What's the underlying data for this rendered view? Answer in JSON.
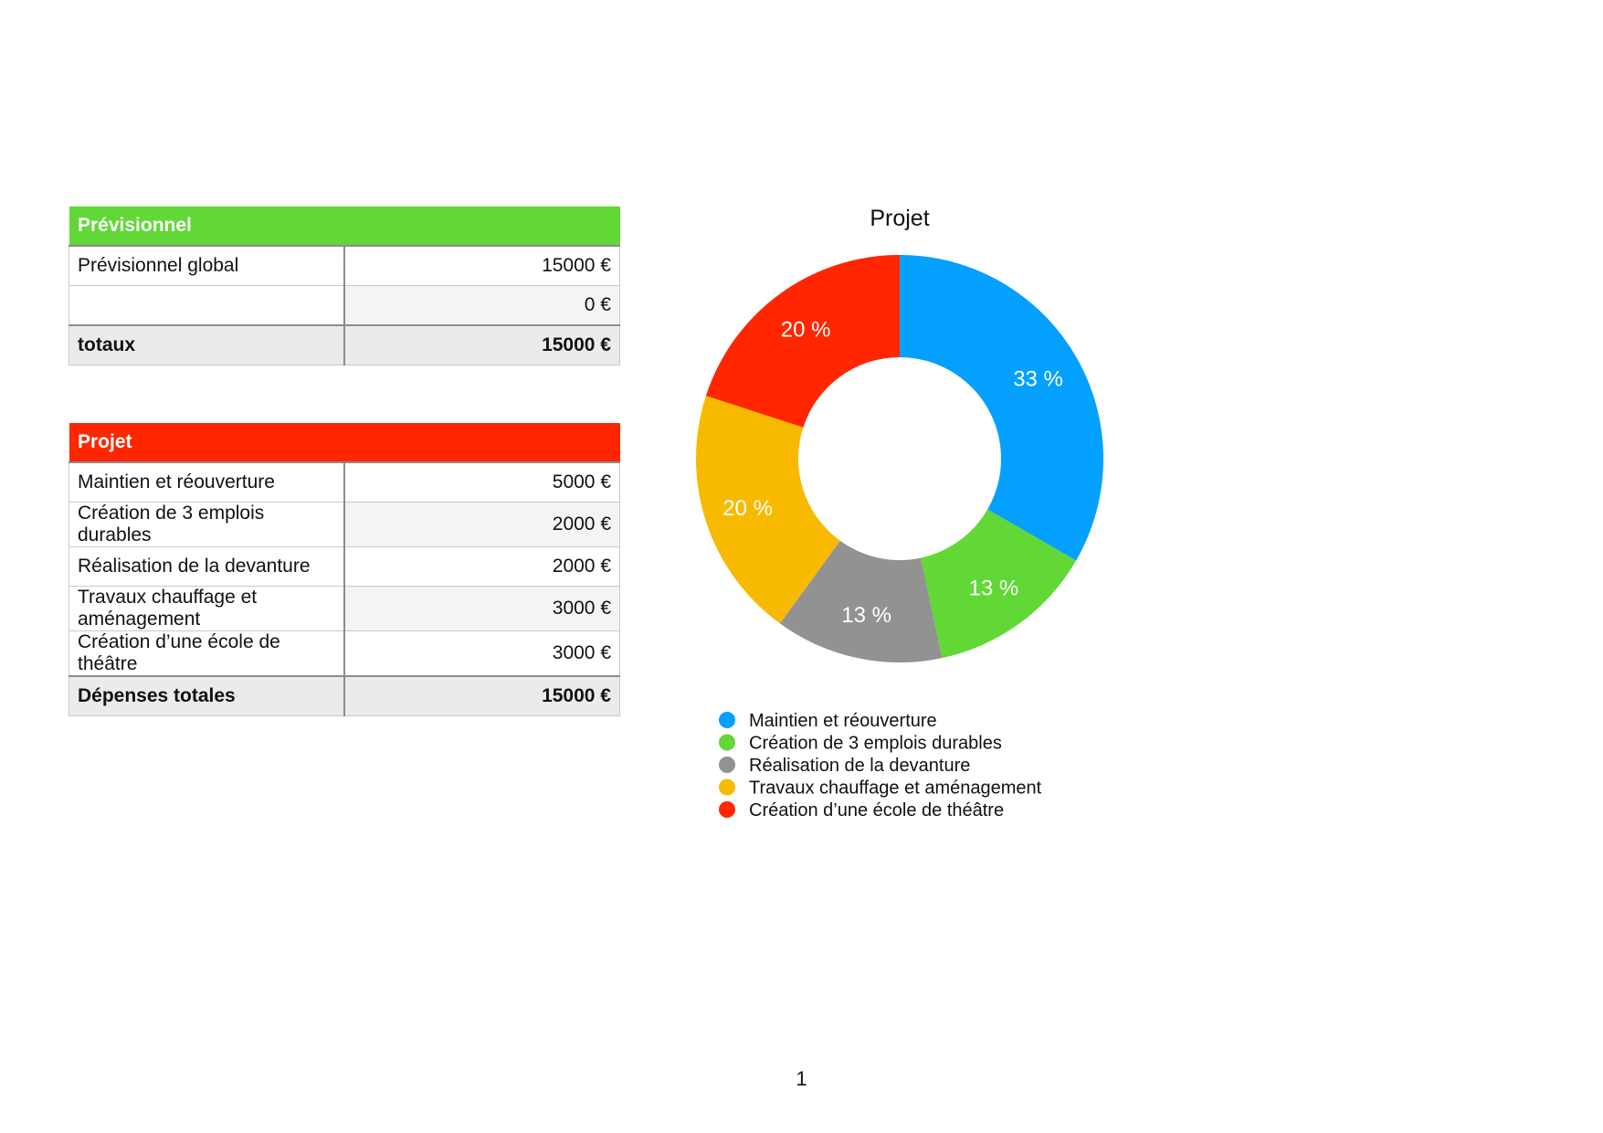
{
  "tables": [
    {
      "header": "Prévisionnel",
      "color": "#61d836",
      "rows": [
        {
          "label": "Prévisionnel global",
          "value": "15000 €"
        },
        {
          "label": "",
          "value": "0 €"
        }
      ],
      "total": {
        "label": "totaux",
        "value": "15000 €"
      }
    },
    {
      "header": "Projet",
      "color": "#ff2600",
      "rows": [
        {
          "label": "Maintien et réouverture",
          "value": "5000 €"
        },
        {
          "label": "Création de 3 emplois durables",
          "value": "2000 €"
        },
        {
          "label": "Réalisation de la devanture",
          "value": "2000 €"
        },
        {
          "label": "Travaux chauffage et aménagement",
          "value": "3000 €"
        },
        {
          "label": "Création d’une école de théâtre",
          "value": "3000 €"
        }
      ],
      "total": {
        "label": "Dépenses totales",
        "value": "15000 €"
      }
    }
  ],
  "chart_data": {
    "type": "pie",
    "style": "donut",
    "title": "Projet",
    "legend": "bottom",
    "slices": [
      {
        "name": "Maintien et réouverture",
        "value": 5000,
        "label": "33 %",
        "color": "#04a0ff"
      },
      {
        "name": "Création de 3 emplois durables",
        "value": 2000,
        "label": "13 %",
        "color": "#61d836"
      },
      {
        "name": "Réalisation de la devanture",
        "value": 2000,
        "label": "13 %",
        "color": "#929292"
      },
      {
        "name": "Travaux chauffage et aménagement",
        "value": 3000,
        "label": "20 %",
        "color": "#f8ba00"
      },
      {
        "name": "Création d’une école de théâtre",
        "value": 3000,
        "label": "20 %",
        "color": "#ff2600"
      }
    ]
  },
  "page_number": "1"
}
